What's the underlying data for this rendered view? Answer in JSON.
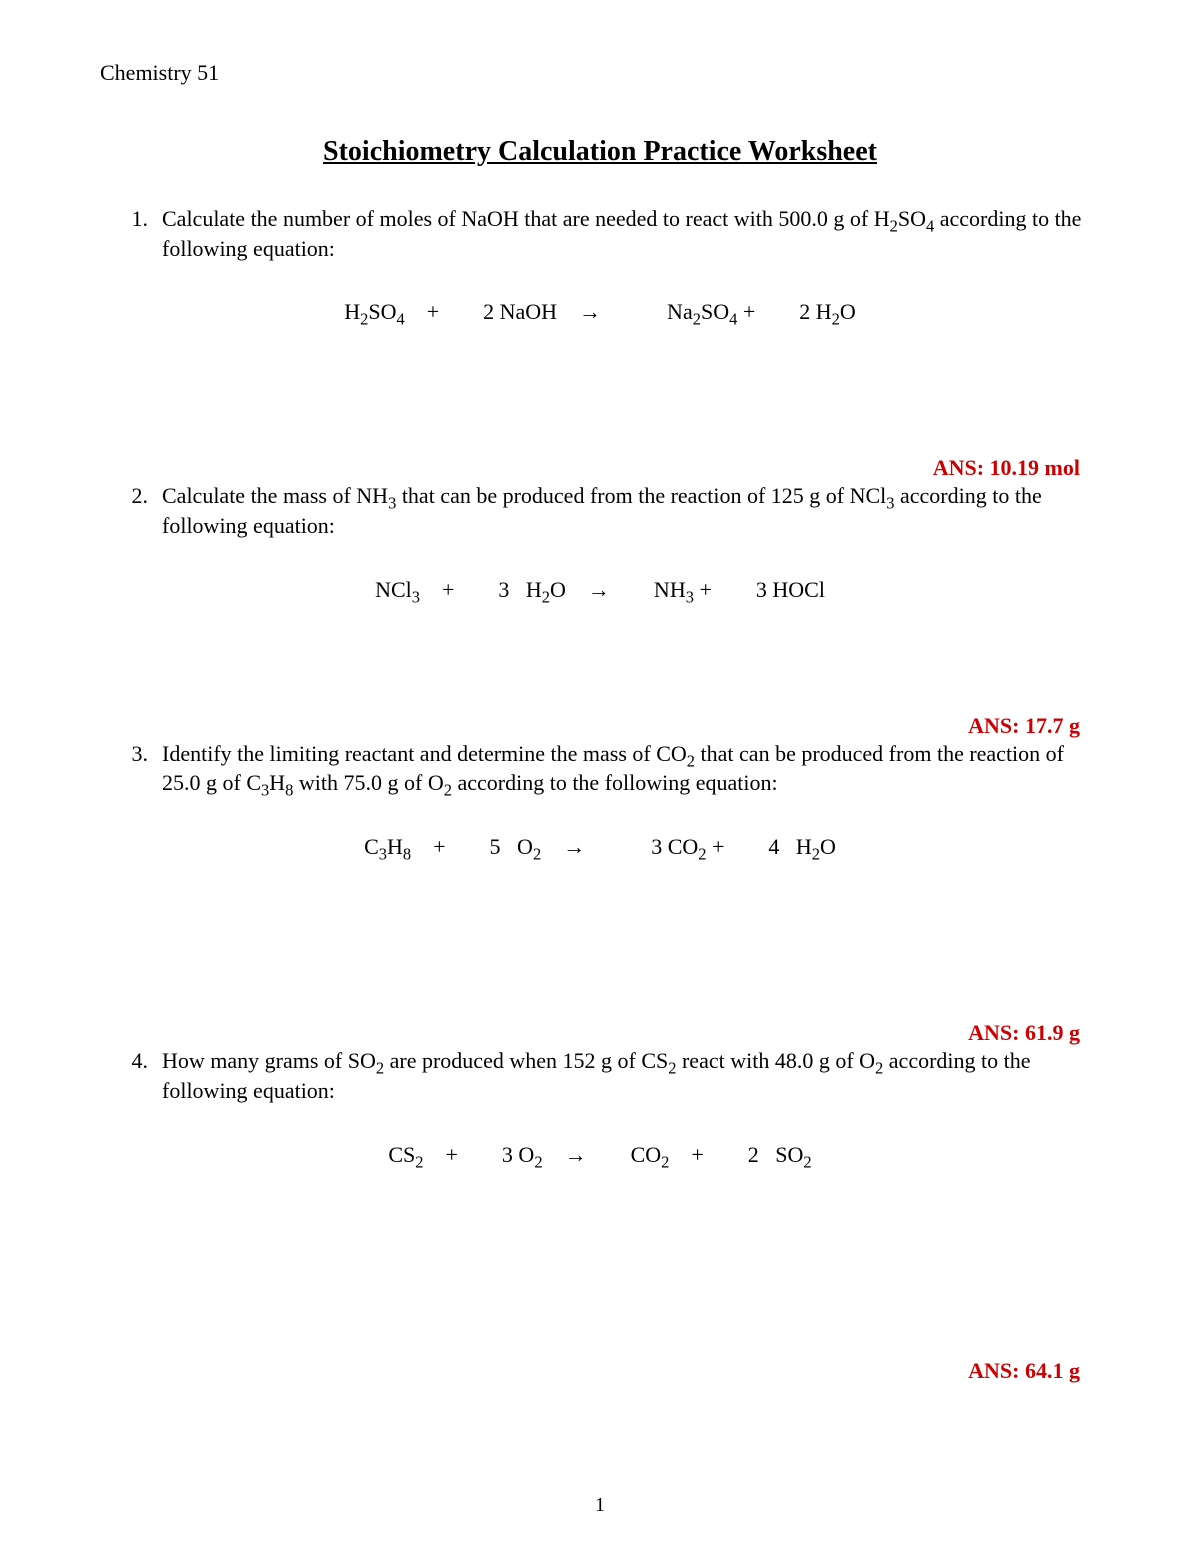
{
  "course": "Chemistry 51",
  "title": "Stoichiometry Calculation Practice Worksheet",
  "text_color": "#000000",
  "answer_color": "#cc0000",
  "background_color": "#ffffff",
  "font_family": "Times New Roman",
  "title_fontsize": 28,
  "body_fontsize": 22,
  "page_number": "1",
  "problems": [
    {
      "number": "1.",
      "text_html": "Calculate the number of moles of NaOH that are needed to react with 500.0 g of H<sub>2</sub>SO<sub>4</sub> according to the following equation:",
      "equation_html": "H<sub>2</sub>SO<sub>4</sub> +  2 NaOH →   Na<sub>2</sub>SO<sub>4</sub> +  2 H<sub>2</sub>O",
      "answer": "ANS: 10.19 mol"
    },
    {
      "number": "2.",
      "text_html": "Calculate the mass of NH<sub>3</sub> that can be produced from the reaction of 125 g of NCl<sub>3</sub> according to the following equation:",
      "equation_html": "NCl<sub>3</sub> +  3  H<sub>2</sub>O →  NH<sub>3</sub> +  3 HOCl",
      "answer": "ANS: 17.7 g"
    },
    {
      "number": "3.",
      "text_html": "Identify the limiting reactant and determine the mass of CO<sub>2</sub> that can be produced from the reaction of 25.0 g of C<sub>3</sub>H<sub>8</sub> with 75.0 g of O<sub>2</sub> according to the following equation:",
      "equation_html": "C<sub>3</sub>H<sub>8</sub> +  5  O<sub>2</sub> →   3 CO<sub>2</sub> +  4  H<sub>2</sub>O",
      "answer": "ANS: 61.9 g"
    },
    {
      "number": "4.",
      "text_html": "How many grams of SO<sub>2</sub> are produced when 152 g of CS<sub>2</sub> react with 48.0 g of O<sub>2</sub> according to the following equation:",
      "equation_html": "CS<sub>2</sub> +  3 O<sub>2</sub> →  CO<sub>2</sub> +  2  SO<sub>2</sub>",
      "answer": "ANS: 64.1 g"
    }
  ]
}
